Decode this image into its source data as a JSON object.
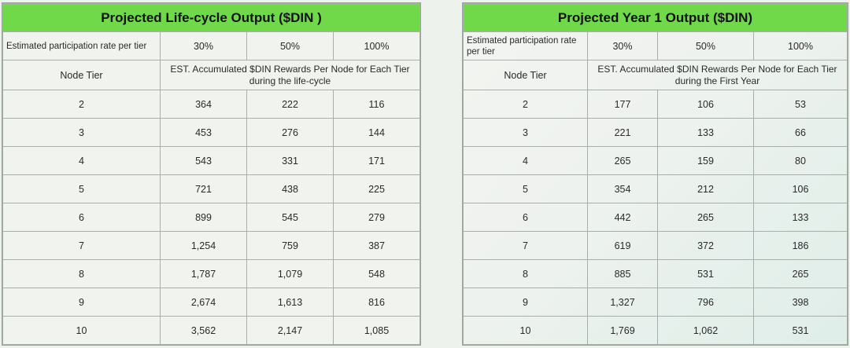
{
  "left": {
    "title": "Projected Life-cycle Output ($DIN )",
    "participation_label": "Estimated participation rate per tier",
    "rates": [
      "30%",
      "50%",
      "100%"
    ],
    "tier_header": "Node Tier",
    "rewards_header": "EST. Accumulated $DIN Rewards Per Node for Each Tier during the life-cycle",
    "rows": [
      {
        "tier": "2",
        "v30": "364",
        "v50": "222",
        "v100": "116"
      },
      {
        "tier": "3",
        "v30": "453",
        "v50": "276",
        "v100": "144"
      },
      {
        "tier": "4",
        "v30": "543",
        "v50": "331",
        "v100": "171"
      },
      {
        "tier": "5",
        "v30": "721",
        "v50": "438",
        "v100": "225"
      },
      {
        "tier": "6",
        "v30": "899",
        "v50": "545",
        "v100": "279"
      },
      {
        "tier": "7",
        "v30": "1,254",
        "v50": "759",
        "v100": "387"
      },
      {
        "tier": "8",
        "v30": "1,787",
        "v50": "1,079",
        "v100": "548"
      },
      {
        "tier": "9",
        "v30": "2,674",
        "v50": "1,613",
        "v100": "816"
      },
      {
        "tier": "10",
        "v30": "3,562",
        "v50": "2,147",
        "v100": "1,085"
      }
    ]
  },
  "right": {
    "title": "Projected Year 1 Output ($DIN)",
    "participation_label": "Estimated participation rate per tier",
    "rates": [
      "30%",
      "50%",
      "100%"
    ],
    "tier_header": "Node Tier",
    "rewards_header": "EST. Accumulated $DIN Rewards Per Node for Each Tier during the First Year",
    "rows": [
      {
        "tier": "2",
        "v30": "177",
        "v50": "106",
        "v100": "53"
      },
      {
        "tier": "3",
        "v30": "221",
        "v50": "133",
        "v100": "66"
      },
      {
        "tier": "4",
        "v30": "265",
        "v50": "159",
        "v100": "80"
      },
      {
        "tier": "5",
        "v30": "354",
        "v50": "212",
        "v100": "106"
      },
      {
        "tier": "6",
        "v30": "442",
        "v50": "265",
        "v100": "133"
      },
      {
        "tier": "7",
        "v30": "619",
        "v50": "372",
        "v100": "186"
      },
      {
        "tier": "8",
        "v30": "885",
        "v50": "531",
        "v100": "265"
      },
      {
        "tier": "9",
        "v30": "1,327",
        "v50": "796",
        "v100": "398"
      },
      {
        "tier": "10",
        "v30": "1,769",
        "v50": "1,062",
        "v100": "531"
      }
    ]
  }
}
